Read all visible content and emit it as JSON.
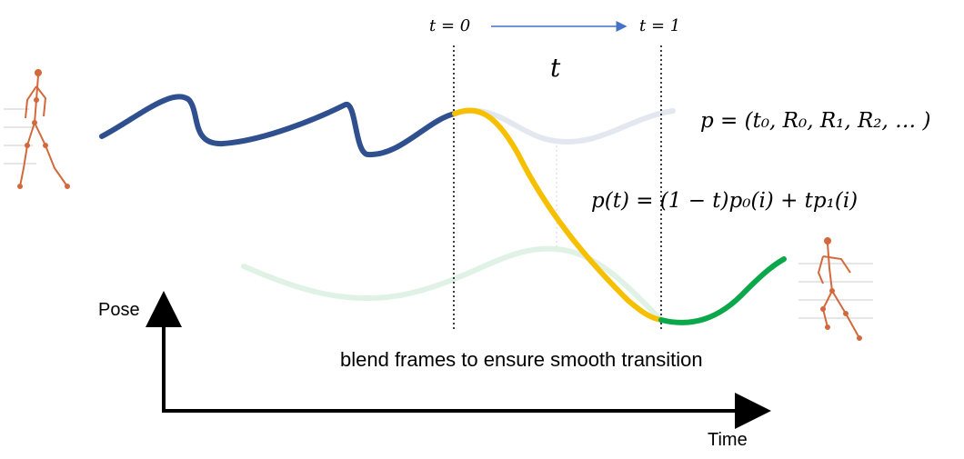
{
  "labels": {
    "t0": "t = 0",
    "t1": "t = 1",
    "t": "t",
    "pose_eq": "p = (t₀, R₀, R₁, R₂, … )",
    "blend_eq": "p(t) = (1 − t)p₀(i) + tp₁(i)",
    "caption": "blend frames to ensure smooth transition",
    "y_axis": "Pose",
    "x_axis": "Time"
  },
  "colors": {
    "motion_a": "#2f4f8f",
    "motion_a_faded": "#e3e7f0",
    "blend": "#f6c000",
    "motion_b": "#0aa84a",
    "motion_b_faded": "#dff2e5",
    "skeleton": "#d2693c",
    "arrow": "#4472c4"
  },
  "icons": {
    "left_figure": "walking-skeleton-icon",
    "right_figure": "dancing-skeleton-icon"
  }
}
